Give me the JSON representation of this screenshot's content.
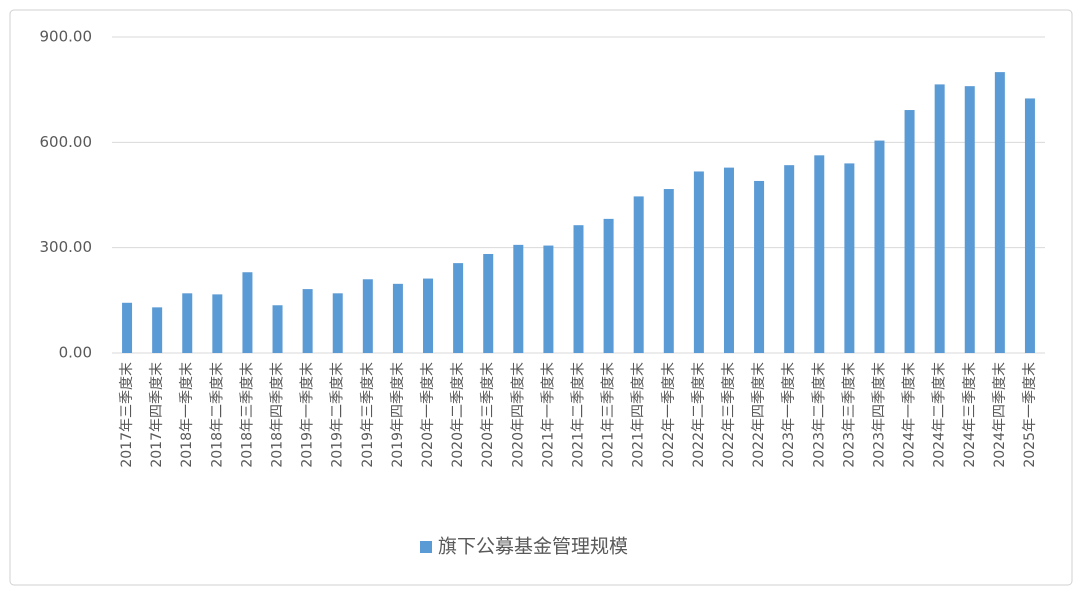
{
  "chart_data": {
    "type": "bar",
    "categories": [
      "2017年三季度末",
      "2017年四季度末",
      "2018年一季度末",
      "2018年二季度末",
      "2018年三季度末",
      "2018年四季度末",
      "2019年一季度末",
      "2019年二季度末",
      "2019年三季度末",
      "2019年四季度末",
      "2020年一季度末",
      "2020年二季度末",
      "2020年三季度末",
      "2020年四季度末",
      "2021年一季度末",
      "2021年二季度末",
      "2021年三季度末",
      "2021年四季度末",
      "2022年一季度末",
      "2022年二季度末",
      "2022年三季度末",
      "2022年四季度末",
      "2023年一季度末",
      "2023年二季度末",
      "2023年三季度末",
      "2023年四季度末",
      "2024年一季度末",
      "2024年二季度末",
      "2024年三季度末",
      "2024年四季度末",
      "2025年一季度末"
    ],
    "series": [
      {
        "name": "旗下公募基金管理规模",
        "color": "#5b9bd5",
        "values": [
          143,
          130,
          170,
          167,
          230,
          136,
          182,
          170,
          210,
          197,
          212,
          256,
          282,
          308,
          306,
          364,
          382,
          446,
          467,
          517,
          528,
          490,
          535,
          563,
          540,
          605,
          692,
          765,
          760,
          800,
          725
        ]
      }
    ],
    "ylim": [
      0,
      900
    ],
    "yticks": [
      {
        "value": 0,
        "label": "0.00"
      },
      {
        "value": 300,
        "label": "300.00"
      },
      {
        "value": 600,
        "label": "600.00"
      },
      {
        "value": 900,
        "label": "900.00"
      }
    ],
    "grid": true,
    "legend": "bottom"
  }
}
